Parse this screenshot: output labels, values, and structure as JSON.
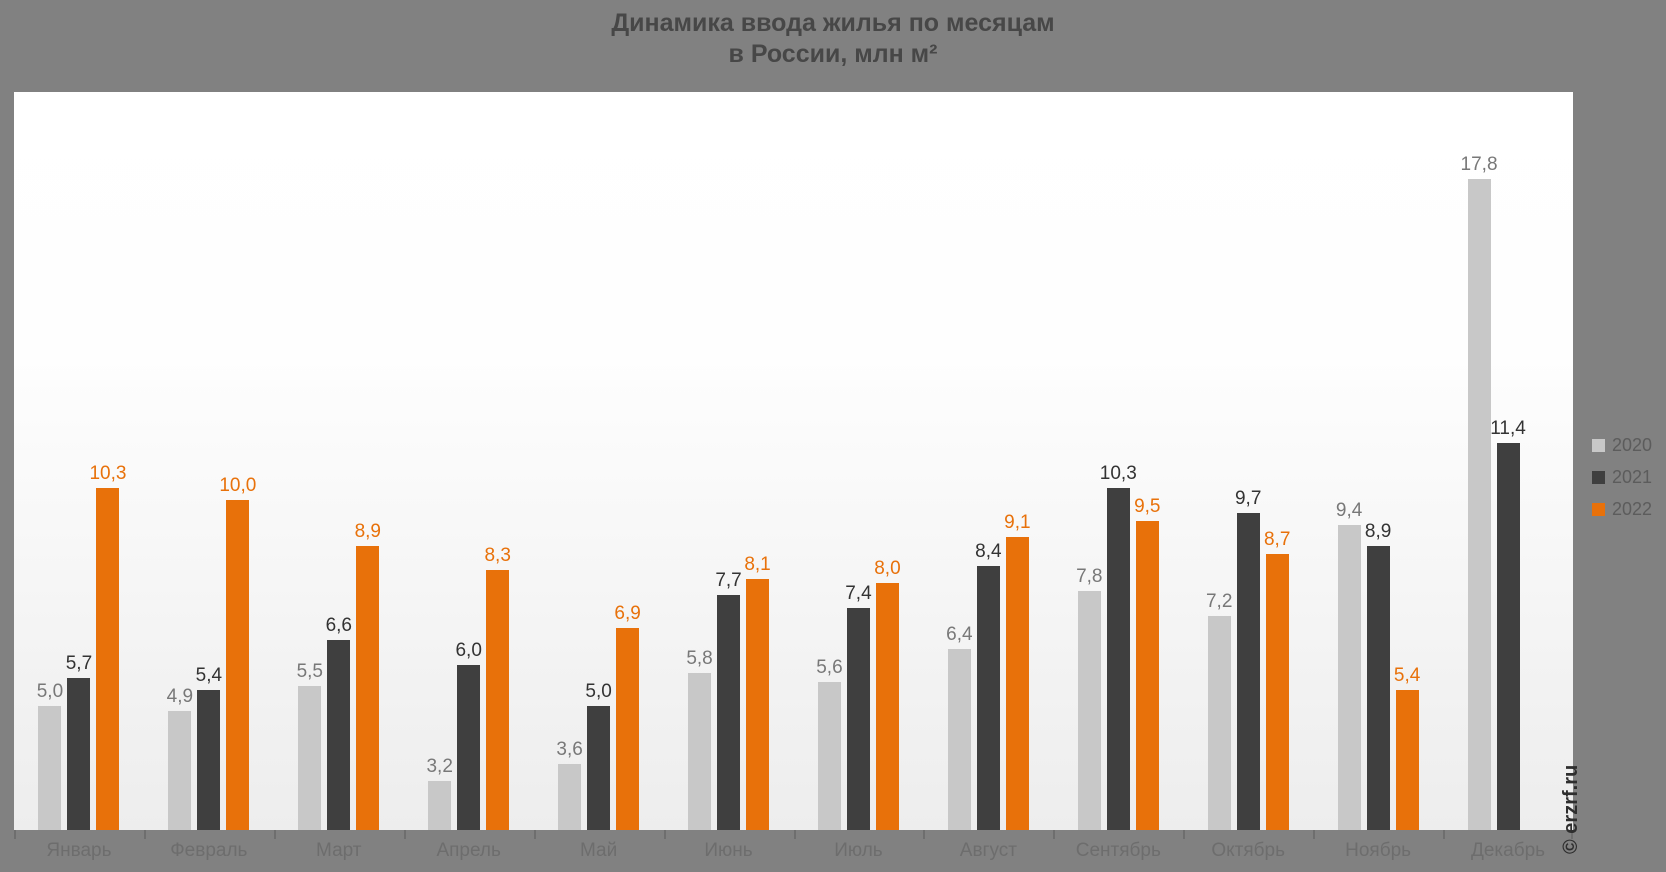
{
  "title": {
    "line1": "Динамика ввода жилья по месяцам",
    "line2": "в России, млн м²"
  },
  "watermark": "© erzrf.ru",
  "colors": {
    "background": "#818181",
    "plot_top": "#ffffff",
    "plot_bottom": "#ededed",
    "title_text": "#474747",
    "month_label_text": "#6d6d6d",
    "legend_text": "#5c5c5c",
    "tick": "#6e6e6e",
    "watermark_text": "#2e2e2e"
  },
  "chart_data": {
    "type": "bar",
    "title": "Динамика ввода жилья по месяцам в России, млн м²",
    "xlabel": "",
    "ylabel": "млн м²",
    "grid": false,
    "legend_position": "right",
    "value_format": "comma-decimal-1",
    "ylim": [
      2.0,
      19.91
    ],
    "categories": [
      "Январь",
      "Февраль",
      "Март",
      "Апрель",
      "Май",
      "Июнь",
      "Июль",
      "Август",
      "Сентябрь",
      "Октябрь",
      "Ноябрь",
      "Декабрь"
    ],
    "series": [
      {
        "name": "2020",
        "color": "#c8c8c8",
        "label_color": "#787878",
        "values": [
          5.0,
          4.9,
          5.5,
          3.2,
          3.6,
          5.8,
          5.6,
          6.4,
          7.8,
          7.2,
          9.4,
          17.8
        ]
      },
      {
        "name": "2021",
        "color": "#3f3f3f",
        "label_color": "#333333",
        "values": [
          5.7,
          5.4,
          6.6,
          6.0,
          5.0,
          7.7,
          7.4,
          8.4,
          10.3,
          9.7,
          8.9,
          11.4
        ]
      },
      {
        "name": "2022",
        "color": "#e8710a",
        "label_color": "#e8710a",
        "values": [
          10.3,
          10.0,
          8.9,
          8.3,
          6.9,
          8.1,
          8.0,
          9.1,
          9.5,
          8.7,
          5.4,
          null
        ]
      }
    ]
  }
}
